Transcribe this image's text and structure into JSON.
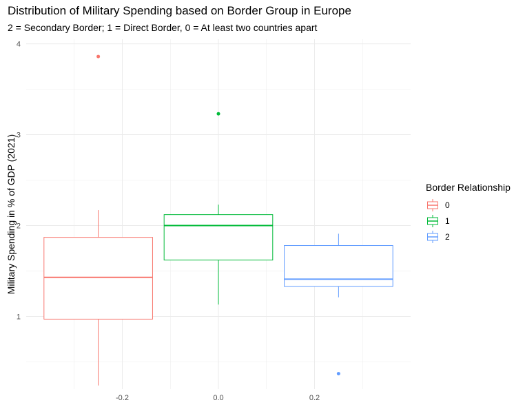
{
  "title": "Distribution of Military Spending based on Border Group in Europe",
  "subtitle": "2 = Secondary Border; 1 = Direct Border, 0 = At least two countries apart",
  "chart_data": {
    "type": "boxplot",
    "xlabel": "",
    "ylabel": "Military Spending in % of GDP (2021)",
    "xlim": [
      -0.4,
      0.4
    ],
    "ylim": [
      0.2,
      4.05
    ],
    "x_ticks": [
      -0.2,
      0.0,
      0.2
    ],
    "x_tick_labels": [
      "-0.2",
      "0.0",
      "0.2"
    ],
    "y_ticks": [
      1,
      2,
      3,
      4
    ],
    "y_tick_labels": [
      "1",
      "2",
      "3",
      "4"
    ],
    "grid": true,
    "legend_title": "Border Relationship",
    "legend_position": "right",
    "series": [
      {
        "name": "0",
        "color": "#F8766D",
        "x_center": -0.25,
        "x_left": -0.363,
        "x_right": -0.137,
        "whisker_low": 0.24,
        "q1": 0.97,
        "median": 1.43,
        "q3": 1.87,
        "whisker_high": 2.17,
        "outliers": [
          3.86
        ]
      },
      {
        "name": "1",
        "color": "#00BA38",
        "x_center": 0.0,
        "x_left": -0.113,
        "x_right": 0.113,
        "whisker_low": 1.13,
        "q1": 1.62,
        "median": 2.0,
        "q3": 2.12,
        "whisker_high": 2.23,
        "outliers": [
          3.23
        ]
      },
      {
        "name": "2",
        "color": "#619CFF",
        "x_center": 0.25,
        "x_left": 0.137,
        "x_right": 0.363,
        "whisker_low": 1.21,
        "q1": 1.33,
        "median": 1.41,
        "q3": 1.78,
        "whisker_high": 1.91,
        "outliers": [
          0.37
        ]
      }
    ]
  }
}
